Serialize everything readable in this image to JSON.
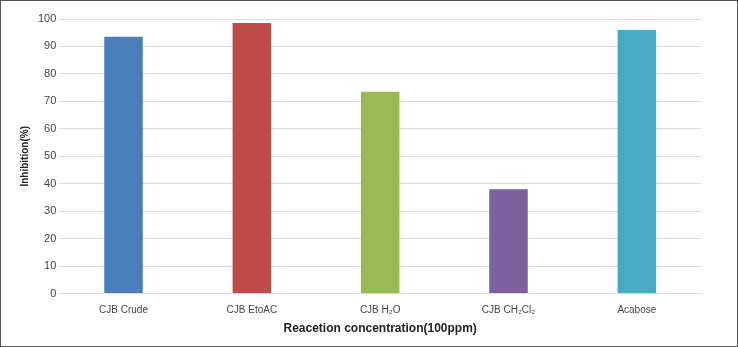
{
  "chart_data": {
    "type": "bar",
    "categories": [
      "CJB Crude",
      "CJB EtoAC",
      "CJB H₂O",
      "CJB CH₂Cl₂",
      "Acabose"
    ],
    "values": [
      93.5,
      98.5,
      73.5,
      38,
      96
    ],
    "colors": [
      "#4a7ebb",
      "#be4b48",
      "#98b954",
      "#7d60a0",
      "#46aac5"
    ],
    "x_label": "Reacetion concentration(100ppm)",
    "y_label": "Inhibition(%)",
    "ylim": [
      0,
      100
    ],
    "yticks": [
      0,
      10,
      20,
      30,
      40,
      50,
      60,
      70,
      80,
      90,
      100
    ],
    "grid": true
  }
}
